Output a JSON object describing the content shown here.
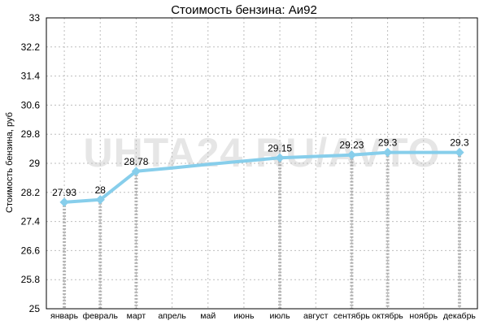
{
  "watermark": "UHTA24.RU/AVTO",
  "colors": {
    "line": "#87CEEB",
    "marker": "#87CEEB",
    "grid": "#bdbdbd",
    "axis": "#000000",
    "drop": "#a6a6a6"
  },
  "chart_data": {
    "type": "line",
    "title": "Стоимость бензина: Аи92",
    "ylabel": "Стоимость бензина, руб",
    "xlabel": "",
    "ylim": [
      25,
      33
    ],
    "yticks": [
      "25",
      "25.8",
      "26.6",
      "27.4",
      "28.2",
      "29",
      "29.8",
      "30.6",
      "31.4",
      "32.2",
      "33"
    ],
    "categories": [
      "январь",
      "февраль",
      "март",
      "апрель",
      "май",
      "июнь",
      "июль",
      "август",
      "сентябрь",
      "октябрь",
      "ноябрь",
      "декабрь"
    ],
    "series": [
      {
        "values": [
          27.93,
          28,
          28.78,
          28.87,
          28.97,
          29.06,
          29.15,
          29.19,
          29.23,
          29.3,
          29.3,
          29.3
        ]
      }
    ],
    "labeled": [
      {
        "index": 0,
        "text": "27.93"
      },
      {
        "index": 1,
        "text": "28"
      },
      {
        "index": 2,
        "text": "28.78"
      },
      {
        "index": 6,
        "text": "29.15"
      },
      {
        "index": 8,
        "text": "29.23"
      },
      {
        "index": 9,
        "text": "29.3"
      },
      {
        "index": 11,
        "text": "29.3"
      }
    ],
    "grid": true,
    "legend": "none"
  }
}
